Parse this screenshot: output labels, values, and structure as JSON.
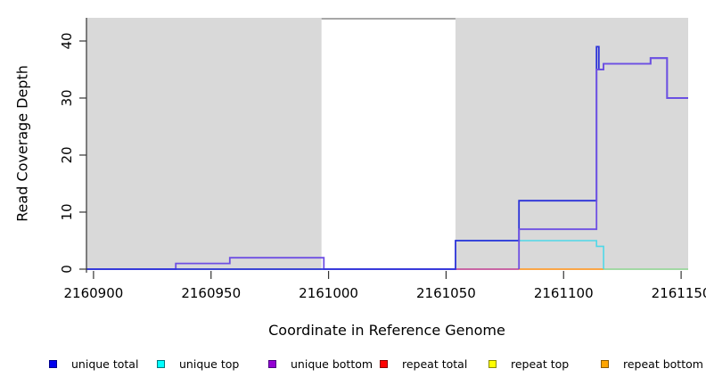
{
  "figure_title": "",
  "x_axis": {
    "title": "Coordinate in Reference Genome",
    "tick_labels": [
      "2160900",
      "2160950",
      "2161000",
      "2161050",
      "2161100",
      "2161150"
    ],
    "tick_values": [
      2160900,
      2160950,
      2161000,
      2161050,
      2161100,
      2161150
    ]
  },
  "y_axis": {
    "title": "Read Coverage Depth",
    "tick_labels": [
      "0",
      "10",
      "20",
      "30",
      "40"
    ],
    "tick_values": [
      0,
      10,
      20,
      30,
      40
    ]
  },
  "legend": {
    "items": [
      {
        "label": "unique total",
        "fill": "#0000EE",
        "border": "#00008B"
      },
      {
        "label": "unique top",
        "fill": "#00FFFF",
        "border": "#00777B"
      },
      {
        "label": "unique bottom",
        "fill": "#9400D3",
        "border": "#4B0082"
      },
      {
        "label": "repeat total",
        "fill": "#FF0000",
        "border": "#8B0000"
      },
      {
        "label": "repeat top",
        "fill": "#FFFF00",
        "border": "#8B8B00"
      },
      {
        "label": "repeat bottom",
        "fill": "#FFA500",
        "border": "#8B5A00"
      }
    ]
  },
  "chart_data": {
    "type": "line",
    "subtype": "step-coverage",
    "title": "",
    "xlabel": "Coordinate in Reference Genome",
    "ylabel": "Read Coverage Depth",
    "xlim": [
      2160897,
      2161153
    ],
    "ylim": [
      0,
      44
    ],
    "grid": false,
    "legend_position": "bottom",
    "plot_background": "#FFFFFF",
    "shaded_regions": {
      "color": "#D9D9D9",
      "ranges": [
        [
          2160897,
          2160997
        ],
        [
          2161054,
          2161153
        ]
      ]
    },
    "gap_top_border": {
      "range": [
        2160997,
        2161054
      ],
      "color": "#8A8A8A"
    },
    "axis_color": "#333333",
    "layers": [
      {
        "series": "unique top / repeat top overlap at 0 (renders light green)",
        "color": "#8FD792",
        "width": 1.5,
        "points": [
          [
            2160935,
            0
          ],
          [
            2160997,
            0
          ]
        ]
      },
      {
        "series": "unique top / repeat top overlap at 0 (renders light green)",
        "color": "#8FD792",
        "width": 1.5,
        "points": [
          [
            2161117,
            0
          ],
          [
            2161153,
            0
          ]
        ]
      },
      {
        "series": "unique bottom",
        "color": "#6E4FE3",
        "width": 1.8,
        "points": [
          [
            2160897,
            0
          ],
          [
            2160935,
            0
          ],
          [
            2160935,
            1
          ],
          [
            2160958,
            1
          ],
          [
            2160958,
            2
          ],
          [
            2160998,
            2
          ],
          [
            2160998,
            0
          ],
          [
            2161081,
            0
          ]
        ]
      },
      {
        "series": "repeat total",
        "color": "#DE6390",
        "width": 1.6,
        "points": [
          [
            2161054,
            0
          ],
          [
            2161081,
            0
          ]
        ]
      },
      {
        "series": "repeat bottom",
        "color": "#FF9E33",
        "width": 1.8,
        "points": [
          [
            2161081,
            0
          ],
          [
            2161117,
            0
          ]
        ]
      },
      {
        "series": "unique top",
        "color": "#4FD8E8",
        "width": 1.6,
        "points": [
          [
            2161054,
            5
          ],
          [
            2161114,
            5
          ],
          [
            2161114,
            4
          ],
          [
            2161117,
            4
          ],
          [
            2161117,
            0
          ]
        ]
      },
      {
        "series": "unique total",
        "color": "#2B32D9",
        "width": 1.8,
        "points": [
          [
            2160897,
            0
          ],
          [
            2161054,
            0
          ],
          [
            2161054,
            5
          ],
          [
            2161081,
            5
          ],
          [
            2161081,
            12
          ],
          [
            2161114,
            12
          ],
          [
            2161114,
            39
          ],
          [
            2161115,
            39
          ],
          [
            2161115,
            35
          ],
          [
            2161117,
            35
          ],
          [
            2161117,
            36
          ],
          [
            2161137,
            36
          ],
          [
            2161137,
            37
          ],
          [
            2161144,
            37
          ],
          [
            2161144,
            30
          ],
          [
            2161153,
            30
          ]
        ]
      },
      {
        "series": "unique bottom",
        "color": "#6E4FE3",
        "width": 1.8,
        "points": [
          [
            2161081,
            0
          ],
          [
            2161081,
            7
          ],
          [
            2161114,
            7
          ],
          [
            2161114,
            35
          ],
          [
            2161117,
            35
          ],
          [
            2161117,
            36
          ],
          [
            2161137,
            36
          ],
          [
            2161137,
            37
          ],
          [
            2161144,
            37
          ],
          [
            2161144,
            30
          ],
          [
            2161153,
            30
          ]
        ]
      }
    ]
  }
}
